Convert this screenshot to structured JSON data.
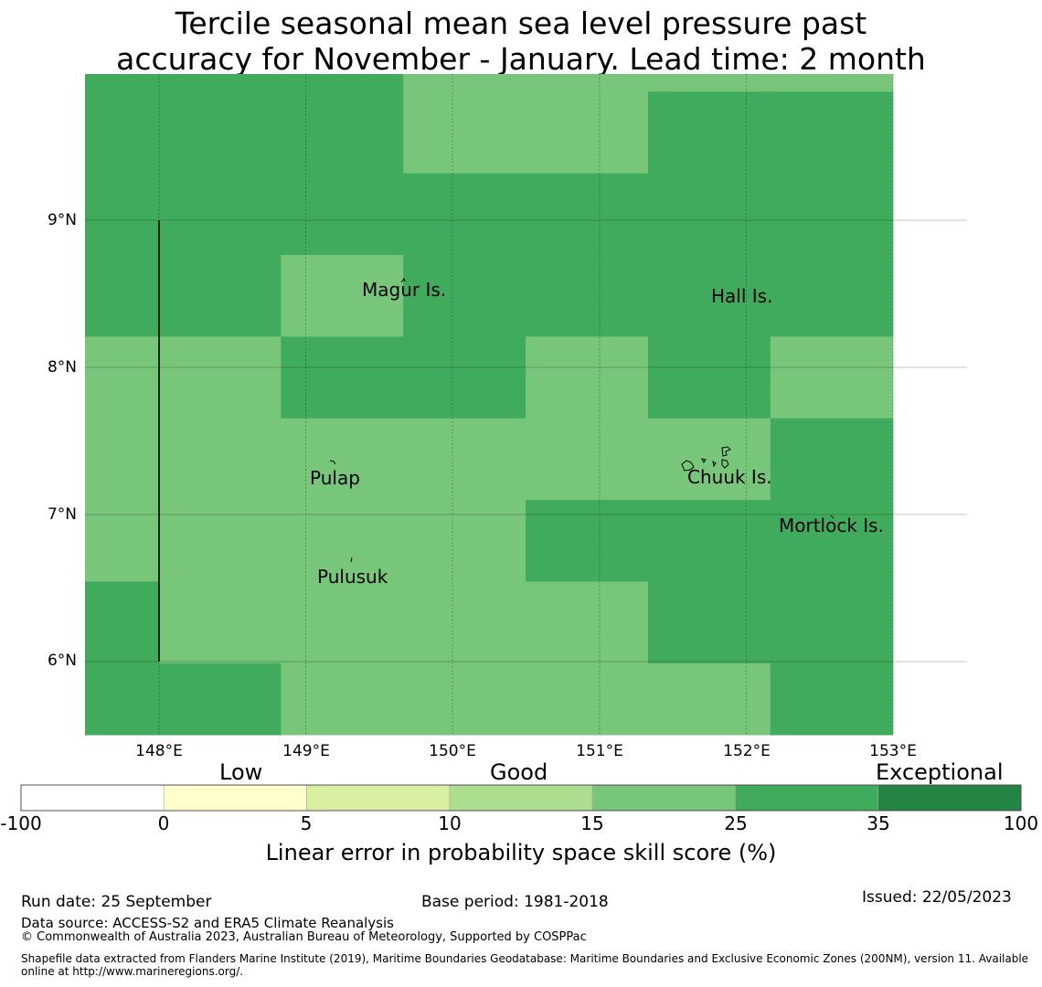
{
  "title_line1": "Tercile seasonal mean sea level pressure past",
  "title_line2": "accuracy for November - January. Lead time: 2 month",
  "colors": {
    "light_green": "#78c679",
    "mid_green": "#41ab5d",
    "dark_green": "#238443",
    "bin_0_5": "#ffffcc",
    "bin_5_10": "#d9f0a3",
    "bin_10_15": "#addd8e",
    "low": "#ffffff"
  },
  "map": {
    "lon_ticks": [
      "148°E",
      "149°E",
      "150°E",
      "151°E",
      "152°E",
      "153°E"
    ],
    "lat_ticks": [
      "9°N",
      "8°N",
      "7°N",
      "6°N"
    ],
    "grid": {
      "lon0": 147.5,
      "lat_top": 10.0,
      "cell_deg_lon": 0.833,
      "cell_deg_lat": 0.5556,
      "cols": 7,
      "rows": 9,
      "note": "bins: 1 = 15-25%, 2 = 25-35%",
      "cells": [
        [
          2,
          2,
          2,
          1,
          1,
          1,
          1
        ],
        [
          2,
          2,
          2,
          1,
          1,
          2,
          2
        ],
        [
          2,
          2,
          2,
          2,
          2,
          2,
          2
        ],
        [
          2,
          2,
          1,
          2,
          2,
          2,
          2
        ],
        [
          1,
          1,
          2,
          2,
          1,
          2,
          1
        ],
        [
          1,
          1,
          1,
          1,
          1,
          1,
          2
        ],
        [
          1,
          1,
          1,
          1,
          2,
          2,
          2
        ],
        [
          2,
          1,
          1,
          1,
          1,
          2,
          2
        ],
        [
          2,
          2,
          1,
          1,
          1,
          1,
          2
        ]
      ]
    },
    "places": [
      {
        "name": "Magur Is."
      },
      {
        "name": "Hall Is."
      },
      {
        "name": "Pulap"
      },
      {
        "name": "Chuuk Is."
      },
      {
        "name": "Mortlock Is."
      },
      {
        "name": "Pulusuk"
      }
    ]
  },
  "colorbar": {
    "categories": [
      "Low",
      "Good",
      "Exceptional"
    ],
    "bin_colors": [
      "#ffffff",
      "#ffffcc",
      "#d9f0a3",
      "#addd8e",
      "#78c679",
      "#41ab5d",
      "#238443"
    ],
    "ticks": [
      "-100",
      "0",
      "5",
      "10",
      "15",
      "25",
      "35",
      "100"
    ],
    "label": "Linear error in probability space skill score (%)"
  },
  "footer": {
    "run_date": "Run date: 25 September",
    "base_period": "Base period: 1981-2018",
    "issued": "Issued: 22/05/2023",
    "data_source": "Data source: ACCESS-S2 and ERA5 Climate Reanalysis",
    "copyright": "© Commonwealth of Australia 2023, Australian Bureau of Meteorology, Supported by COSPPac",
    "shapefile_line1": "Shapefile data extracted from Flanders Marine Institute (2019), Maritime Boundaries Geodatabase: Maritime Boundaries and Exclusive Economic Zones (200NM), version 11. Available",
    "shapefile_line2": "online at http://www.marineregions.org/."
  }
}
